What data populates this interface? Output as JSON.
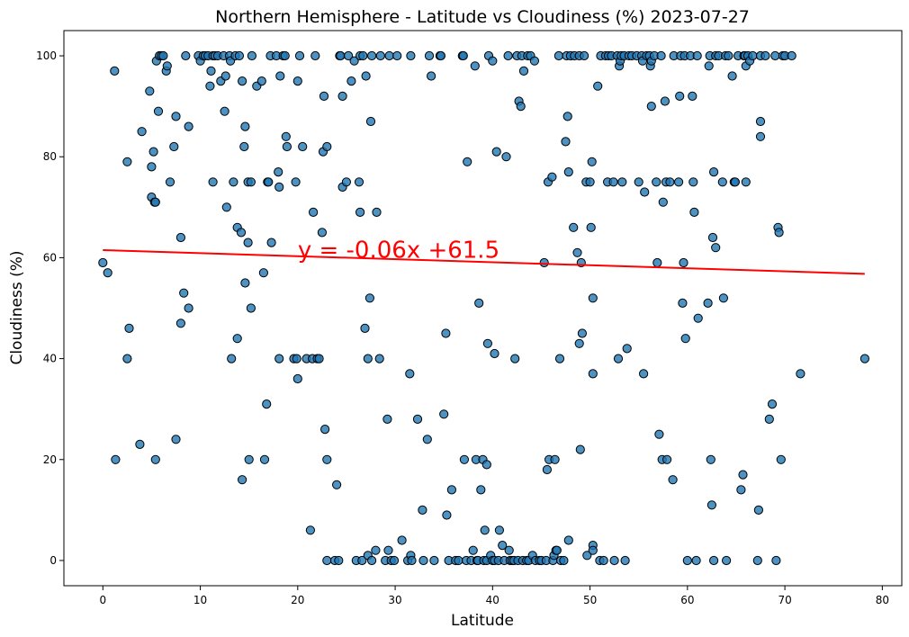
{
  "chart_data": {
    "type": "scatter",
    "title": "Northern Hemisphere - Latitude vs Cloudiness (%) 2023-07-27",
    "xlabel": "Latitude",
    "ylabel": "Cloudiness (%)",
    "xlim": [
      -4,
      82
    ],
    "ylim": [
      -5,
      105
    ],
    "xticks": [
      0,
      10,
      20,
      30,
      40,
      50,
      60,
      70,
      80
    ],
    "yticks": [
      0,
      20,
      40,
      60,
      80,
      100
    ],
    "grid": false,
    "marker_color": "#1f77b4",
    "marker_edge_color": "#000000",
    "regression": {
      "slope": -0.06,
      "intercept": 61.5,
      "x_range": [
        0,
        78.2
      ],
      "color": "#ff0000",
      "equation_label": "y = -0.06x +61.5",
      "label_at": [
        20,
        60
      ]
    },
    "points": [
      [
        0,
        59
      ],
      [
        0.5,
        57
      ],
      [
        1.2,
        97
      ],
      [
        1.3,
        20
      ],
      [
        2.5,
        79
      ],
      [
        2.5,
        40
      ],
      [
        2.7,
        46
      ],
      [
        3.8,
        23
      ],
      [
        4,
        85
      ],
      [
        4.8,
        93
      ],
      [
        5,
        78
      ],
      [
        5,
        72
      ],
      [
        5.2,
        81
      ],
      [
        5.3,
        71
      ],
      [
        5.4,
        71
      ],
      [
        5.4,
        20
      ],
      [
        5.5,
        99
      ],
      [
        5.7,
        89
      ],
      [
        5.8,
        100
      ],
      [
        6,
        100
      ],
      [
        6.2,
        100
      ],
      [
        6.5,
        97
      ],
      [
        6.6,
        98
      ],
      [
        6.9,
        75
      ],
      [
        7.3,
        82
      ],
      [
        7.5,
        24
      ],
      [
        7.5,
        88
      ],
      [
        8,
        64
      ],
      [
        8,
        47
      ],
      [
        8.3,
        53
      ],
      [
        8.5,
        100
      ],
      [
        8.8,
        86
      ],
      [
        8.8,
        50
      ],
      [
        9.8,
        100
      ],
      [
        10,
        99
      ],
      [
        10.3,
        100
      ],
      [
        10.5,
        100
      ],
      [
        10.8,
        100
      ],
      [
        11,
        94
      ],
      [
        11.1,
        97
      ],
      [
        11.3,
        75
      ],
      [
        11.3,
        100
      ],
      [
        11.5,
        100
      ],
      [
        11.8,
        100
      ],
      [
        12.1,
        95
      ],
      [
        12.4,
        100
      ],
      [
        12.5,
        89
      ],
      [
        12.6,
        96
      ],
      [
        12.7,
        70
      ],
      [
        13,
        100
      ],
      [
        13.1,
        99
      ],
      [
        13.2,
        40
      ],
      [
        13.4,
        75
      ],
      [
        13.6,
        100
      ],
      [
        13.8,
        66
      ],
      [
        13.8,
        44
      ],
      [
        14,
        100
      ],
      [
        14.2,
        65
      ],
      [
        14.3,
        16
      ],
      [
        14.3,
        95
      ],
      [
        14.5,
        82
      ],
      [
        14.6,
        86
      ],
      [
        14.6,
        55
      ],
      [
        14.9,
        75
      ],
      [
        14.9,
        63
      ],
      [
        15,
        20
      ],
      [
        15.2,
        75
      ],
      [
        15.2,
        50
      ],
      [
        15.3,
        100
      ],
      [
        15.8,
        94
      ],
      [
        16.3,
        95
      ],
      [
        16.5,
        57
      ],
      [
        16.6,
        20
      ],
      [
        16.8,
        31
      ],
      [
        16.9,
        75
      ],
      [
        17,
        75
      ],
      [
        17.2,
        100
      ],
      [
        17.3,
        63
      ],
      [
        17.8,
        100
      ],
      [
        18,
        77
      ],
      [
        18.1,
        74
      ],
      [
        18.1,
        40
      ],
      [
        18.2,
        96
      ],
      [
        18.5,
        100
      ],
      [
        18.7,
        100
      ],
      [
        18.8,
        84
      ],
      [
        18.9,
        82
      ],
      [
        19.6,
        40
      ],
      [
        19.8,
        75
      ],
      [
        19.9,
        40
      ],
      [
        20,
        95
      ],
      [
        20,
        36
      ],
      [
        20.2,
        100
      ],
      [
        20.5,
        82
      ],
      [
        20.9,
        40
      ],
      [
        21.3,
        6
      ],
      [
        21.5,
        40
      ],
      [
        21.6,
        69
      ],
      [
        21.8,
        100
      ],
      [
        22,
        40
      ],
      [
        22.2,
        40
      ],
      [
        22.5,
        65
      ],
      [
        22.6,
        81
      ],
      [
        22.7,
        92
      ],
      [
        22.8,
        26
      ],
      [
        23,
        20
      ],
      [
        23,
        0
      ],
      [
        23,
        82
      ],
      [
        23.8,
        0
      ],
      [
        24,
        15
      ],
      [
        24.2,
        0
      ],
      [
        24.3,
        100
      ],
      [
        24.4,
        100
      ],
      [
        24.6,
        74
      ],
      [
        24.6,
        92
      ],
      [
        25,
        75
      ],
      [
        25.2,
        100
      ],
      [
        25.5,
        95
      ],
      [
        25.8,
        99
      ],
      [
        26,
        0
      ],
      [
        26.3,
        75
      ],
      [
        26.4,
        100
      ],
      [
        26.4,
        69
      ],
      [
        26.6,
        0
      ],
      [
        26.7,
        100
      ],
      [
        26.9,
        46
      ],
      [
        27,
        96
      ],
      [
        27.2,
        40
      ],
      [
        27.2,
        1
      ],
      [
        27.4,
        52
      ],
      [
        27.5,
        87
      ],
      [
        27.6,
        0
      ],
      [
        27.6,
        100
      ],
      [
        28,
        2
      ],
      [
        28.1,
        69
      ],
      [
        28.4,
        40
      ],
      [
        28.5,
        100
      ],
      [
        29,
        0
      ],
      [
        29.2,
        28
      ],
      [
        29.3,
        2
      ],
      [
        29.4,
        100
      ],
      [
        29.6,
        0
      ],
      [
        29.9,
        0
      ],
      [
        30.2,
        100
      ],
      [
        30.7,
        4
      ],
      [
        31.3,
        0
      ],
      [
        31.5,
        37
      ],
      [
        31.6,
        100
      ],
      [
        31.6,
        1
      ],
      [
        31.7,
        0
      ],
      [
        32.3,
        28
      ],
      [
        32.8,
        10
      ],
      [
        32.9,
        0
      ],
      [
        33.3,
        24
      ],
      [
        33.5,
        100
      ],
      [
        33.7,
        96
      ],
      [
        34,
        0
      ],
      [
        34.6,
        100
      ],
      [
        34.7,
        100
      ],
      [
        35,
        29
      ],
      [
        35.2,
        45
      ],
      [
        35.3,
        9
      ],
      [
        35.5,
        0
      ],
      [
        35.8,
        14
      ],
      [
        36.2,
        0
      ],
      [
        36.5,
        0
      ],
      [
        36.9,
        100
      ],
      [
        37,
        100
      ],
      [
        37.1,
        20
      ],
      [
        37.3,
        0
      ],
      [
        37.4,
        79
      ],
      [
        37.8,
        0
      ],
      [
        38,
        2
      ],
      [
        38.2,
        98
      ],
      [
        38.3,
        20
      ],
      [
        38.4,
        0
      ],
      [
        38.5,
        0
      ],
      [
        38.6,
        51
      ],
      [
        38.8,
        14
      ],
      [
        39,
        20
      ],
      [
        39.1,
        0
      ],
      [
        39.2,
        6
      ],
      [
        39.4,
        19
      ],
      [
        39.4,
        0
      ],
      [
        39.5,
        43
      ],
      [
        39.6,
        100
      ],
      [
        39.8,
        1
      ],
      [
        40,
        0
      ],
      [
        40,
        99
      ],
      [
        40.2,
        41
      ],
      [
        40.2,
        0
      ],
      [
        40.4,
        81
      ],
      [
        40.6,
        0
      ],
      [
        40.7,
        6
      ],
      [
        41,
        3
      ],
      [
        41.2,
        0
      ],
      [
        41.4,
        80
      ],
      [
        41.6,
        100
      ],
      [
        41.7,
        2
      ],
      [
        41.8,
        0
      ],
      [
        42,
        0
      ],
      [
        42.2,
        0
      ],
      [
        42.3,
        40
      ],
      [
        42.5,
        100
      ],
      [
        42.6,
        0
      ],
      [
        42.7,
        91
      ],
      [
        42.9,
        90
      ],
      [
        43,
        100
      ],
      [
        43.1,
        0
      ],
      [
        43.2,
        97
      ],
      [
        43.5,
        0
      ],
      [
        43.6,
        100
      ],
      [
        43.7,
        0
      ],
      [
        43.9,
        100
      ],
      [
        44.1,
        1
      ],
      [
        44.3,
        99
      ],
      [
        44.4,
        0
      ],
      [
        44.8,
        0
      ],
      [
        45,
        0
      ],
      [
        45.3,
        59
      ],
      [
        45.5,
        0
      ],
      [
        45.6,
        18
      ],
      [
        45.7,
        75
      ],
      [
        45.8,
        20
      ],
      [
        46.1,
        76
      ],
      [
        46.2,
        0
      ],
      [
        46.3,
        1
      ],
      [
        46.4,
        20
      ],
      [
        46.5,
        2
      ],
      [
        46.6,
        2
      ],
      [
        46.8,
        100
      ],
      [
        46.9,
        40
      ],
      [
        47,
        0
      ],
      [
        47.3,
        0
      ],
      [
        47.5,
        83
      ],
      [
        47.6,
        100
      ],
      [
        47.7,
        88
      ],
      [
        47.8,
        77
      ],
      [
        47.8,
        4
      ],
      [
        48,
        100
      ],
      [
        48.3,
        66
      ],
      [
        48.4,
        100
      ],
      [
        48.7,
        61
      ],
      [
        48.9,
        100
      ],
      [
        48.9,
        43
      ],
      [
        49,
        22
      ],
      [
        49.1,
        59
      ],
      [
        49.2,
        45
      ],
      [
        49.4,
        100
      ],
      [
        49.6,
        75
      ],
      [
        49.7,
        1
      ],
      [
        50,
        75
      ],
      [
        50.1,
        66
      ],
      [
        50.2,
        79
      ],
      [
        50.3,
        52
      ],
      [
        50.3,
        37
      ],
      [
        50.3,
        3
      ],
      [
        50.3,
        2
      ],
      [
        50.8,
        94
      ],
      [
        51,
        0
      ],
      [
        51.1,
        100
      ],
      [
        51.4,
        0
      ],
      [
        51.6,
        100
      ],
      [
        51.8,
        75
      ],
      [
        51.9,
        100
      ],
      [
        52.2,
        100
      ],
      [
        52.4,
        75
      ],
      [
        52.5,
        0
      ],
      [
        52.8,
        100
      ],
      [
        52.9,
        40
      ],
      [
        53,
        98
      ],
      [
        53.1,
        99
      ],
      [
        53.2,
        100
      ],
      [
        53.3,
        75
      ],
      [
        53.5,
        100
      ],
      [
        53.6,
        0
      ],
      [
        53.8,
        42
      ],
      [
        54,
        100
      ],
      [
        54.3,
        100
      ],
      [
        54.8,
        100
      ],
      [
        55,
        75
      ],
      [
        55.3,
        100
      ],
      [
        55.4,
        99
      ],
      [
        55.5,
        37
      ],
      [
        55.6,
        73
      ],
      [
        55.8,
        100
      ],
      [
        56.1,
        100
      ],
      [
        56.2,
        98
      ],
      [
        56.3,
        90
      ],
      [
        56.3,
        99
      ],
      [
        56.6,
        100
      ],
      [
        56.8,
        75
      ],
      [
        56.9,
        59
      ],
      [
        57.1,
        25
      ],
      [
        57.3,
        100
      ],
      [
        57.4,
        20
      ],
      [
        57.5,
        71
      ],
      [
        57.7,
        91
      ],
      [
        57.8,
        75
      ],
      [
        57.9,
        20
      ],
      [
        58.2,
        75
      ],
      [
        58.5,
        16
      ],
      [
        58.6,
        100
      ],
      [
        59.1,
        75
      ],
      [
        59.2,
        92
      ],
      [
        59.3,
        100
      ],
      [
        59.5,
        51
      ],
      [
        59.6,
        59
      ],
      [
        59.7,
        100
      ],
      [
        59.8,
        44
      ],
      [
        60,
        0
      ],
      [
        60.3,
        100
      ],
      [
        60.5,
        92
      ],
      [
        60.6,
        75
      ],
      [
        60.7,
        69
      ],
      [
        60.9,
        0
      ],
      [
        61,
        100
      ],
      [
        61.1,
        48
      ],
      [
        62.1,
        51
      ],
      [
        62.2,
        98
      ],
      [
        62.3,
        100
      ],
      [
        62.4,
        20
      ],
      [
        62.5,
        11
      ],
      [
        62.6,
        64
      ],
      [
        62.7,
        77
      ],
      [
        62.7,
        0
      ],
      [
        62.9,
        100
      ],
      [
        62.9,
        62
      ],
      [
        63.2,
        100
      ],
      [
        63.6,
        75
      ],
      [
        63.7,
        52
      ],
      [
        63.9,
        100
      ],
      [
        64,
        0
      ],
      [
        64.2,
        100
      ],
      [
        64.6,
        96
      ],
      [
        64.8,
        75
      ],
      [
        64.9,
        75
      ],
      [
        65.2,
        100
      ],
      [
        65.5,
        14
      ],
      [
        65.7,
        17
      ],
      [
        65.8,
        100
      ],
      [
        65.9,
        100
      ],
      [
        66,
        98
      ],
      [
        66,
        75
      ],
      [
        66.2,
        100
      ],
      [
        66.4,
        99
      ],
      [
        66.7,
        100
      ],
      [
        67.2,
        0
      ],
      [
        67.3,
        10
      ],
      [
        67.5,
        100
      ],
      [
        67.5,
        87
      ],
      [
        67.5,
        84
      ],
      [
        68,
        100
      ],
      [
        68.4,
        28
      ],
      [
        68.7,
        31
      ],
      [
        69,
        100
      ],
      [
        69.1,
        0
      ],
      [
        69.3,
        66
      ],
      [
        69.4,
        65
      ],
      [
        69.6,
        20
      ],
      [
        69.8,
        100
      ],
      [
        70,
        100
      ],
      [
        70.7,
        100
      ],
      [
        71.6,
        37
      ],
      [
        78.2,
        40
      ]
    ]
  }
}
